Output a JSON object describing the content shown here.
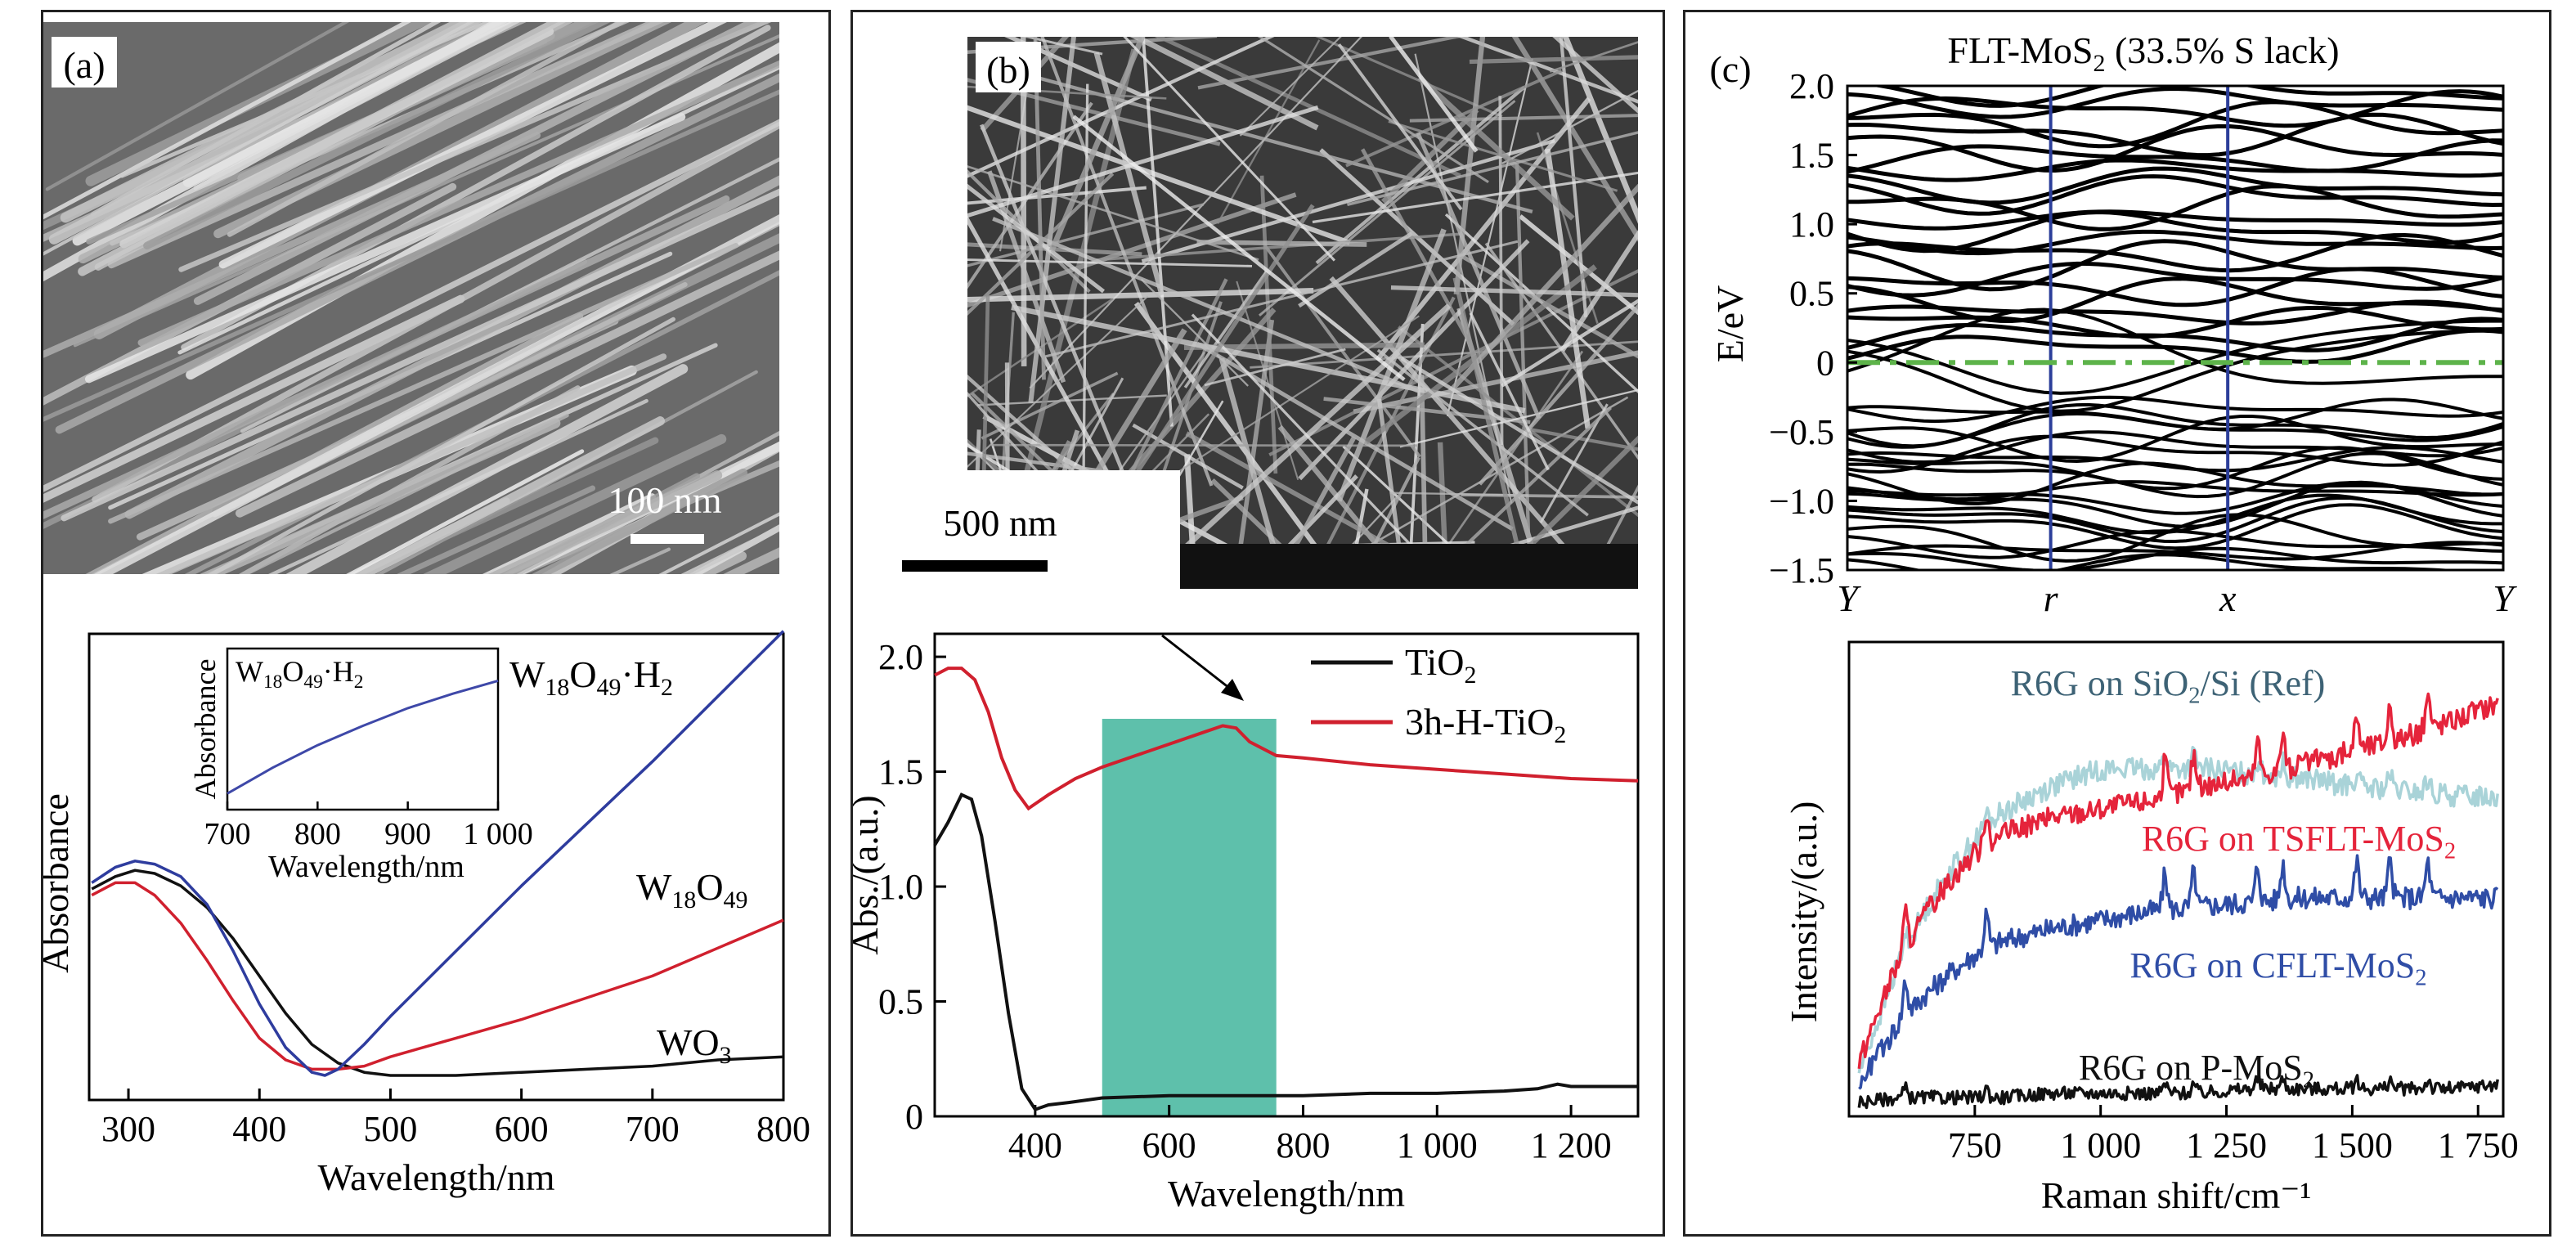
{
  "panels": {
    "a": {
      "label": "(a)",
      "scale_bar": "100 nm",
      "chart_data": {
        "type": "line",
        "xlabel": "Wavelength/nm",
        "ylabel": "Absorbance",
        "xlim": [
          270,
          800
        ],
        "xticks": [
          300,
          400,
          500,
          600,
          700,
          800
        ],
        "series": [
          {
            "name": "WO3",
            "label_main": "WO",
            "label_sub": "3",
            "color": "#111111",
            "x": [
              272,
              290,
              305,
              320,
              340,
              360,
              380,
              400,
              420,
              440,
              460,
              480,
              500,
              550,
              600,
              650,
              700,
              750,
              800
            ],
            "y": [
              0.6,
              0.64,
              0.66,
              0.65,
              0.61,
              0.54,
              0.44,
              0.32,
              0.2,
              0.1,
              0.04,
              0.01,
              0.0,
              0.0,
              0.01,
              0.02,
              0.03,
              0.05,
              0.06
            ]
          },
          {
            "name": "W18O49",
            "label_main": "W",
            "label_sub1": "18",
            "label_mid": "O",
            "label_sub2": "49",
            "color": "#d0202e",
            "x": [
              272,
              290,
              305,
              320,
              340,
              360,
              380,
              400,
              420,
              440,
              460,
              480,
              500,
              550,
              600,
              650,
              700,
              750,
              800
            ],
            "y": [
              0.58,
              0.62,
              0.62,
              0.58,
              0.49,
              0.37,
              0.24,
              0.12,
              0.05,
              0.02,
              0.02,
              0.03,
              0.06,
              0.12,
              0.18,
              0.25,
              0.32,
              0.41,
              0.5
            ]
          },
          {
            "name": "W18O49·H2",
            "label_main": "W",
            "label_sub1": "18",
            "label_mid": "O",
            "label_sub2": "49",
            "label_tail": "·H",
            "label_sub3": "2",
            "color": "#2e3c9e",
            "x": [
              272,
              290,
              305,
              320,
              340,
              360,
              380,
              400,
              420,
              440,
              450,
              460,
              480,
              500,
              550,
              600,
              650,
              700,
              750,
              800
            ],
            "y": [
              0.62,
              0.67,
              0.69,
              0.68,
              0.64,
              0.55,
              0.4,
              0.23,
              0.09,
              0.01,
              0.0,
              0.02,
              0.1,
              0.19,
              0.4,
              0.61,
              0.81,
              1.01,
              1.22,
              1.43
            ]
          }
        ],
        "inset": {
          "xlabel": "Wavelength/nm",
          "ylabel": "Absorbance",
          "title_main": "W",
          "title_sub1": "18",
          "title_mid": "O",
          "title_sub2": "49",
          "title_tail": "·H",
          "title_sub3": "2",
          "xlim": [
            700,
            1000
          ],
          "xticks": [
            700,
            800,
            900,
            1000
          ],
          "xtick_labels": [
            "700",
            "800",
            "900",
            "1 000"
          ],
          "color": "#3e48a8",
          "x": [
            700,
            750,
            800,
            850,
            900,
            950,
            1000
          ],
          "y": [
            0.1,
            0.26,
            0.4,
            0.52,
            0.63,
            0.72,
            0.8
          ]
        }
      }
    },
    "b": {
      "label": "(b)",
      "scale_bar": "500 nm",
      "chart_data": {
        "type": "line",
        "xlabel": "Wavelength/nm",
        "ylabel": "Abs./(a.u.)",
        "xlim": [
          250,
          1300
        ],
        "ylim": [
          0,
          2.1
        ],
        "xticks": [
          400,
          600,
          800,
          1000,
          1200
        ],
        "xtick_labels": [
          "400",
          "600",
          "800",
          "1 000",
          "1 200"
        ],
        "yticks": [
          0,
          0.5,
          1.0,
          1.5,
          2.0
        ],
        "ytick_labels": [
          "0",
          "0.5",
          "1.0",
          "1.5",
          "2.0"
        ],
        "highlight_band": [
          500,
          760
        ],
        "series": [
          {
            "name": "TiO2",
            "label_main": "TiO",
            "label_sub": "2",
            "color": "#111111",
            "x": [
              250,
              270,
              290,
              305,
              320,
              340,
              360,
              380,
              400,
              420,
              450,
              500,
              600,
              700,
              800,
              900,
              1000,
              1100,
              1150,
              1180,
              1200,
              1250,
              1300
            ],
            "y": [
              1.18,
              1.28,
              1.4,
              1.38,
              1.22,
              0.85,
              0.45,
              0.12,
              0.03,
              0.05,
              0.06,
              0.08,
              0.09,
              0.09,
              0.09,
              0.1,
              0.1,
              0.11,
              0.12,
              0.14,
              0.13,
              0.13,
              0.13
            ]
          },
          {
            "name": "3h-H-TiO2",
            "label_main": "3h-H-TiO",
            "label_sub": "2",
            "color": "#d0202e",
            "x": [
              250,
              270,
              290,
              310,
              330,
              350,
              370,
              390,
              420,
              460,
              500,
              550,
              600,
              650,
              680,
              700,
              720,
              760,
              800,
              900,
              1000,
              1100,
              1200,
              1300
            ],
            "y": [
              1.92,
              1.95,
              1.95,
              1.9,
              1.76,
              1.56,
              1.42,
              1.34,
              1.4,
              1.47,
              1.52,
              1.57,
              1.62,
              1.67,
              1.7,
              1.69,
              1.63,
              1.57,
              1.56,
              1.53,
              1.51,
              1.49,
              1.47,
              1.46
            ]
          }
        ]
      }
    },
    "c": {
      "label": "(c)",
      "band": {
        "title_main": "FLT-MoS",
        "title_sub": "2",
        "title_tail": " (33.5% S lack)",
        "ylabel": "E/eV",
        "ylim": [
          -1.5,
          2.0
        ],
        "yticks": [
          -1.5,
          -1.0,
          -0.5,
          0,
          0.5,
          1.0,
          1.5,
          2.0
        ],
        "ytick_labels": [
          "−1.5",
          "−1.0",
          "−0.5",
          "0",
          "0.5",
          "1.0",
          "1.5",
          "2.0"
        ],
        "kpoints": [
          "Y",
          "r",
          "x",
          "Y"
        ],
        "kpoint_positions": [
          0,
          0.31,
          0.58,
          1.0
        ],
        "fermi_level": 0,
        "fermi_color": "#5db34a",
        "kline_color": "#2c3e9a"
      },
      "raman": {
        "type": "line",
        "xlabel": "Raman shift/cm⁻¹",
        "ylabel": "Intensity/(a.u.)",
        "xlim": [
          500,
          1800
        ],
        "xticks": [
          750,
          1000,
          1250,
          1500,
          1750
        ],
        "xtick_labels": [
          "750",
          "1 000",
          "1 250",
          "1 500",
          "1 750"
        ],
        "series": [
          {
            "name": "R6G on SiO2/Si (Ref)",
            "color": "#a9d3d8",
            "label_color": "#3d6275",
            "label_parts": [
              "R6G on SiO",
              "2",
              "/Si (Ref)"
            ],
            "x": [
              520,
              560,
              600,
              650,
              700,
              750,
              800,
              900,
              1000,
              1100,
              1200,
              1300,
              1400,
              1500,
              1600,
              1700,
              1790
            ],
            "y": [
              0.08,
              0.2,
              0.33,
              0.44,
              0.53,
              0.6,
              0.66,
              0.72,
              0.76,
              0.76,
              0.76,
              0.75,
              0.74,
              0.72,
              0.71,
              0.7,
              0.7
            ]
          },
          {
            "name": "R6G on TSFLT-MoS2",
            "color": "#e5243b",
            "label_color": "#e5243b",
            "label_parts": [
              "R6G on TSFLT-MoS",
              "2",
              ""
            ],
            "x": [
              520,
              560,
              600,
              650,
              700,
              750,
              800,
              900,
              1000,
              1100,
              1200,
              1300,
              1400,
              1500,
              1600,
              1700,
              1790
            ],
            "y": [
              0.1,
              0.22,
              0.33,
              0.43,
              0.51,
              0.57,
              0.61,
              0.65,
              0.67,
              0.69,
              0.72,
              0.74,
              0.77,
              0.8,
              0.83,
              0.87,
              0.91
            ]
          },
          {
            "name": "R6G on CFLT-MoS2",
            "color": "#2f4da6",
            "label_color": "#2f4da6",
            "label_parts": [
              "R6G on CFLT-MoS",
              "2",
              ""
            ],
            "x": [
              520,
              560,
              600,
              650,
              700,
              750,
              800,
              900,
              1000,
              1100,
              1200,
              1300,
              1400,
              1500,
              1600,
              1700,
              1790
            ],
            "y": [
              0.05,
              0.12,
              0.19,
              0.25,
              0.3,
              0.34,
              0.37,
              0.4,
              0.42,
              0.44,
              0.45,
              0.46,
              0.47,
              0.47,
              0.47,
              0.47,
              0.47
            ]
          },
          {
            "name": "R6G on P-MoS2",
            "color": "#111111",
            "label_color": "#111111",
            "label_parts": [
              "R6G on P-MoS",
              "2",
              ""
            ],
            "x": [
              520,
              600,
              700,
              800,
              900,
              1000,
              1100,
              1200,
              1300,
              1400,
              1500,
              1600,
              1700,
              1790
            ],
            "y": [
              0.01,
              0.02,
              0.02,
              0.02,
              0.03,
              0.03,
              0.03,
              0.03,
              0.04,
              0.04,
              0.04,
              0.04,
              0.04,
              0.05
            ]
          }
        ],
        "peaks": [
          612,
          773,
          1128,
          1185,
          1312,
          1362,
          1509,
          1575,
          1650
        ]
      }
    }
  }
}
